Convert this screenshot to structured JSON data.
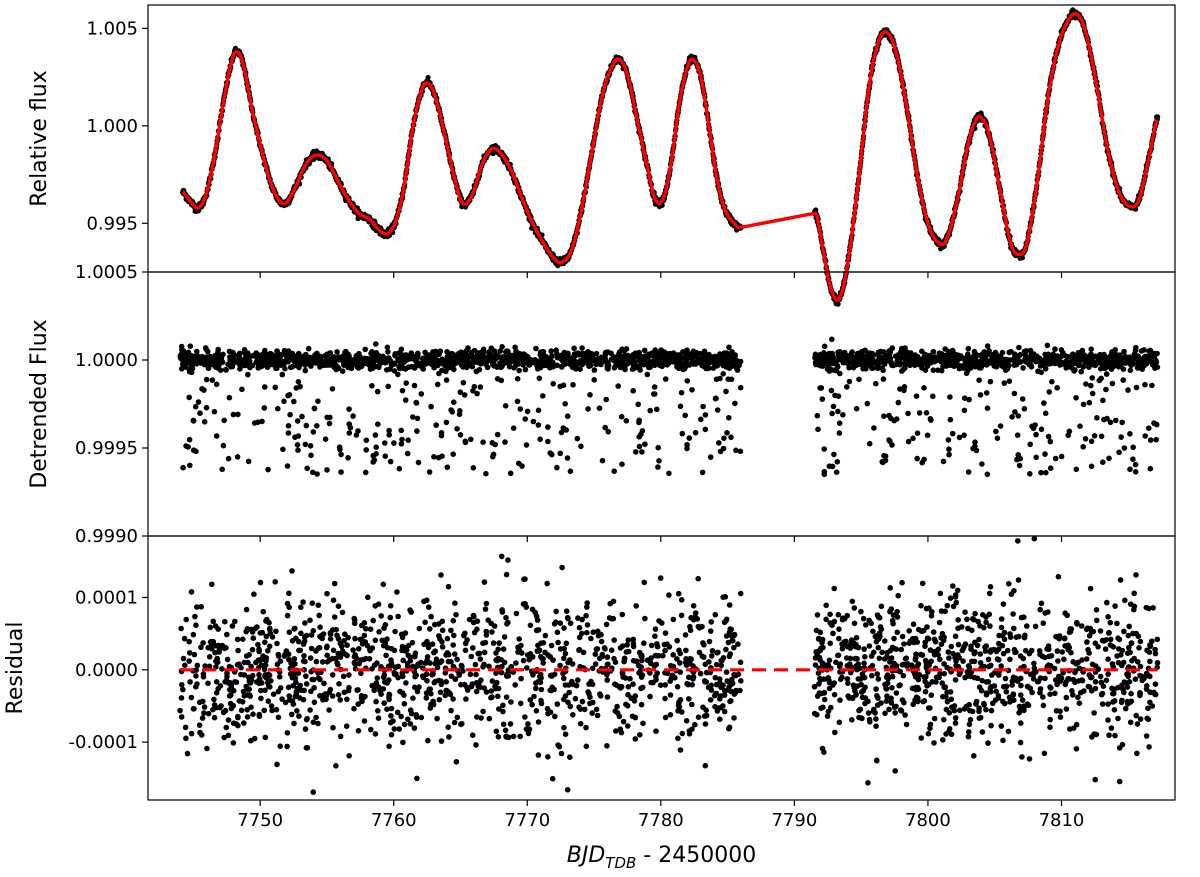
{
  "chart_data": [
    {
      "type": "line",
      "panel": "top",
      "ylabel": "Relative flux",
      "ylim": [
        0.9925,
        1.0062
      ],
      "yticks": [
        0.995,
        1.0,
        1.005
      ],
      "yticklabels": [
        "0.995",
        "1.000",
        "1.005"
      ],
      "gap": [
        7786.0,
        7791.5
      ],
      "series": [
        {
          "label": "data",
          "color": "#000000",
          "kind": "points",
          "points": [
            [
              7744.2,
              0.9966
            ],
            [
              7744.8,
              0.9961
            ],
            [
              7745.4,
              0.9958
            ],
            [
              7746.0,
              0.9966
            ],
            [
              7746.6,
              0.9985
            ],
            [
              7747.2,
              1.001
            ],
            [
              7747.8,
              1.0031
            ],
            [
              7748.2,
              1.0038
            ],
            [
              7748.7,
              1.0032
            ],
            [
              7749.4,
              1.0008
            ],
            [
              7750.2,
              0.9985
            ],
            [
              7751.0,
              0.9967
            ],
            [
              7751.8,
              0.996
            ],
            [
              7752.6,
              0.9968
            ],
            [
              7753.4,
              0.998
            ],
            [
              7754.2,
              0.9985
            ],
            [
              7755.0,
              0.9982
            ],
            [
              7755.8,
              0.9972
            ],
            [
              7756.6,
              0.9962
            ],
            [
              7757.4,
              0.9955
            ],
            [
              7758.2,
              0.9952
            ],
            [
              7759.0,
              0.9946
            ],
            [
              7759.6,
              0.9945
            ],
            [
              7760.2,
              0.9952
            ],
            [
              7760.8,
              0.997
            ],
            [
              7761.4,
              0.9998
            ],
            [
              7762.0,
              1.0016
            ],
            [
              7762.4,
              1.0022
            ],
            [
              7763.0,
              1.0017
            ],
            [
              7763.8,
              0.9996
            ],
            [
              7764.6,
              0.9972
            ],
            [
              7765.2,
              0.996
            ],
            [
              7765.9,
              0.9965
            ],
            [
              7766.6,
              0.998
            ],
            [
              7767.3,
              0.9988
            ],
            [
              7768.0,
              0.9986
            ],
            [
              7768.8,
              0.9977
            ],
            [
              7769.6,
              0.9963
            ],
            [
              7770.4,
              0.995
            ],
            [
              7771.2,
              0.994
            ],
            [
              7772.0,
              0.9932
            ],
            [
              7772.6,
              0.993
            ],
            [
              7773.3,
              0.9936
            ],
            [
              7774.0,
              0.9955
            ],
            [
              7774.8,
              0.9985
            ],
            [
              7775.6,
              1.0015
            ],
            [
              7776.4,
              1.0031
            ],
            [
              7776.9,
              1.0034
            ],
            [
              7777.5,
              1.0026
            ],
            [
              7778.2,
              1.0004
            ],
            [
              7779.0,
              0.9979
            ],
            [
              7779.6,
              0.9962
            ],
            [
              7780.2,
              0.9963
            ],
            [
              7780.8,
              0.9982
            ],
            [
              7781.4,
              1.0012
            ],
            [
              7782.0,
              1.003
            ],
            [
              7782.4,
              1.0034
            ],
            [
              7783.0,
              1.0025
            ],
            [
              7783.6,
              1.0
            ],
            [
              7784.2,
              0.9973
            ],
            [
              7784.8,
              0.9957
            ],
            [
              7785.5,
              0.995
            ],
            [
              7786.0,
              0.9948
            ],
            [
              7791.6,
              0.9955
            ],
            [
              7792.2,
              0.9935
            ],
            [
              7792.6,
              0.992
            ],
            [
              7793.0,
              0.9912
            ],
            [
              7793.4,
              0.9912
            ],
            [
              7794.0,
              0.993
            ],
            [
              7794.8,
              0.9972
            ],
            [
              7795.6,
              1.002
            ],
            [
              7796.3,
              1.0043
            ],
            [
              7796.9,
              1.0048
            ],
            [
              7797.6,
              1.0038
            ],
            [
              7798.4,
              1.001
            ],
            [
              7799.2,
              0.9975
            ],
            [
              7800.0,
              0.995
            ],
            [
              7800.8,
              0.994
            ],
            [
              7801.4,
              0.9942
            ],
            [
              7802.2,
              0.9962
            ],
            [
              7803.0,
              0.999
            ],
            [
              7803.6,
              1.0003
            ],
            [
              7804.0,
              1.0004
            ],
            [
              7804.6,
              0.9995
            ],
            [
              7805.4,
              0.9967
            ],
            [
              7806.2,
              0.994
            ],
            [
              7806.8,
              0.9934
            ],
            [
              7807.4,
              0.994
            ],
            [
              7808.2,
              0.9972
            ],
            [
              7809.0,
              1.0015
            ],
            [
              7809.8,
              1.0042
            ],
            [
              7810.6,
              1.0055
            ],
            [
              7811.2,
              1.0057
            ],
            [
              7811.8,
              1.0048
            ],
            [
              7812.6,
              1.0022
            ],
            [
              7813.4,
              0.999
            ],
            [
              7814.2,
              0.9968
            ],
            [
              7815.0,
              0.9959
            ],
            [
              7815.8,
              0.9962
            ],
            [
              7816.6,
              0.9985
            ],
            [
              7817.2,
              1.0004
            ]
          ]
        },
        {
          "label": "model",
          "color": "#ff0000",
          "kind": "line"
        }
      ]
    },
    {
      "type": "scatter",
      "panel": "middle",
      "ylabel": "Detrended Flux",
      "ylim": [
        0.999,
        1.0005
      ],
      "yticks": [
        0.999,
        0.9995,
        1.0,
        1.0005
      ],
      "yticklabels": [
        "0.9990",
        "0.9995",
        "1.0000",
        "1.0005"
      ],
      "color": "#000000",
      "baseline": 1.0,
      "segments": [
        [
          7744.0,
          7786.0
        ],
        [
          7791.5,
          7817.2
        ]
      ],
      "dense_spread": 5e-05,
      "outlier_range": [
        0.99935,
        0.9999
      ],
      "points_per_segment": [
        1500,
        950
      ]
    },
    {
      "type": "scatter",
      "panel": "bottom",
      "ylabel": "Residual",
      "ylim": [
        -0.00018,
        0.000185
      ],
      "yticks": [
        -0.0001,
        0.0,
        0.0001
      ],
      "yticklabels": [
        "-0.0001",
        "0.0000",
        "0.0001"
      ],
      "color": "#000000",
      "segments": [
        [
          7744.0,
          7786.0
        ],
        [
          7791.5,
          7817.2
        ]
      ],
      "spread": 5e-05,
      "points_per_segment": [
        1300,
        900
      ],
      "zero_line": {
        "value": 0.0,
        "color": "#ff0000",
        "style": "dashed"
      }
    }
  ],
  "xaxis": {
    "xlim": [
      7741.6,
      7818.5
    ],
    "ticks": [
      7750,
      7760,
      7770,
      7780,
      7790,
      7800,
      7810
    ],
    "ticklabels": [
      "7750",
      "7760",
      "7770",
      "7780",
      "7790",
      "7800",
      "7810"
    ],
    "label_main": "BJD",
    "label_sub": "TDB",
    "label_rest": " - 2450000"
  }
}
